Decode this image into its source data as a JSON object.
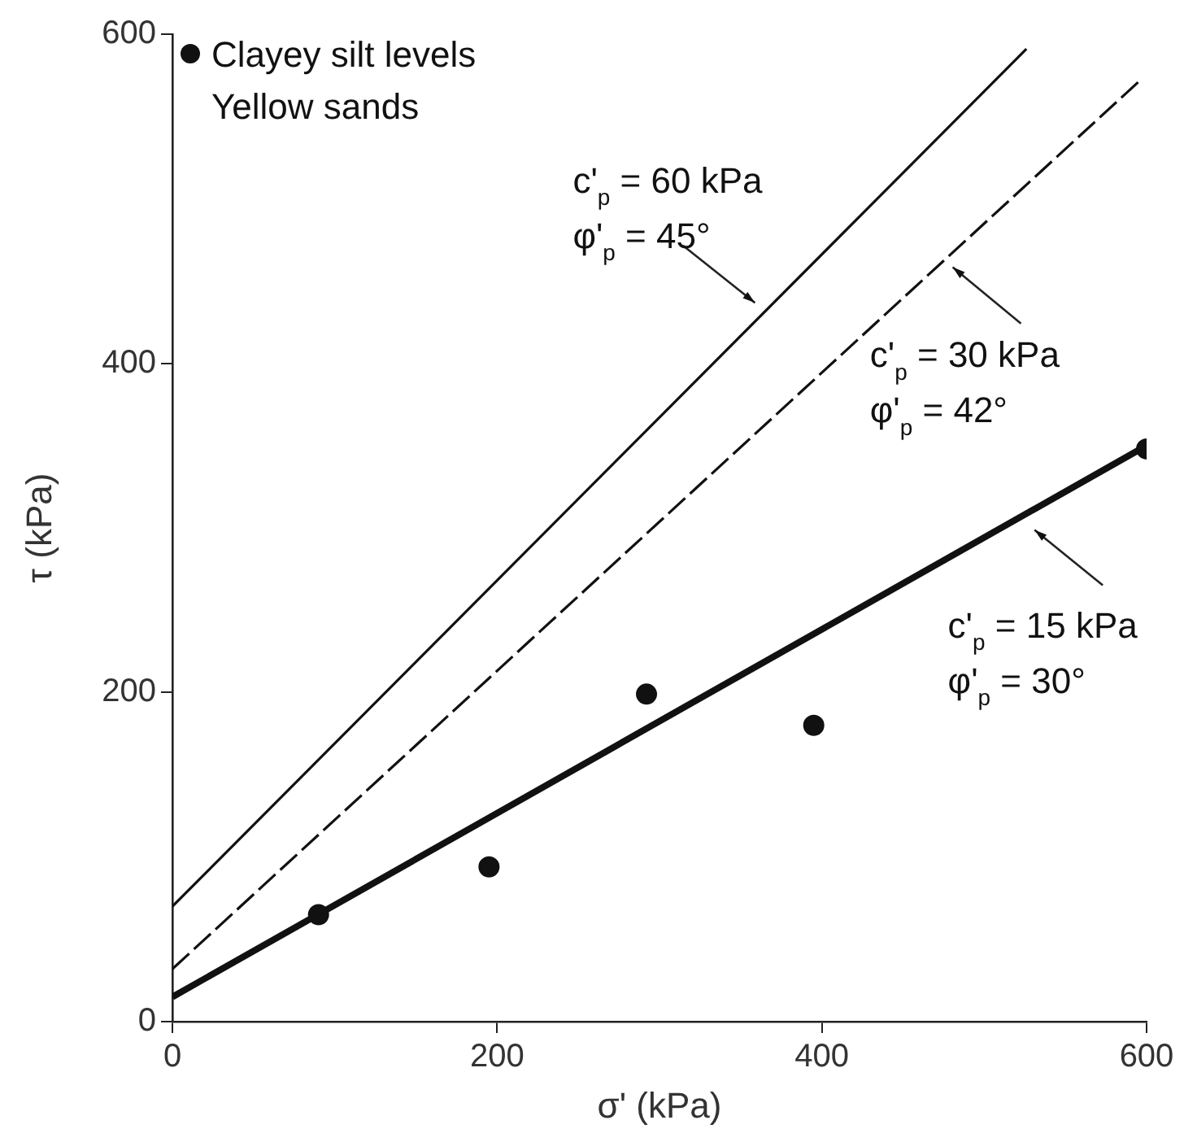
{
  "chart_data": {
    "type": "scatter",
    "xlabel": "σ' (kPa)",
    "ylabel": "τ (kPa)",
    "xlim": [
      0,
      600
    ],
    "xticks": [
      0,
      200,
      400,
      600
    ],
    "ylim": [
      0,
      600
    ],
    "yticks": [
      0,
      200,
      400,
      600
    ],
    "grid": false,
    "legend": "top left",
    "series": [
      {
        "name": "Clayey silt levels",
        "type": "scatter",
        "marker": "circle",
        "color": "#111111",
        "x": [
          90,
          195,
          292,
          395,
          600
        ],
        "values": [
          65,
          94,
          199,
          180,
          348
        ]
      },
      {
        "type": "line",
        "color": "#111111",
        "line_style": "solid",
        "x": [
          0,
          600
        ],
        "values": [
          15,
          350
        ]
      },
      {
        "type": "line",
        "color": "#111111",
        "line_style": "dashed",
        "x": [
          0,
          595
        ],
        "values": [
          32,
          571
        ]
      },
      {
        "type": "line",
        "color": "#111111",
        "line_style": "solid",
        "x": [
          0,
          526
        ],
        "values": [
          70,
          591
        ]
      }
    ],
    "annotations": [
      "Yellow sands",
      "c'$_{p}$ = 60 kPa\nφ'$_{p}$ = 45°",
      "c'$_{p}$ = 30 kPa\nφ'$_{p}$ = 42°",
      "c'$_{p}$ = 15 kPa\nφ'$_{p}$ = 30°"
    ]
  }
}
